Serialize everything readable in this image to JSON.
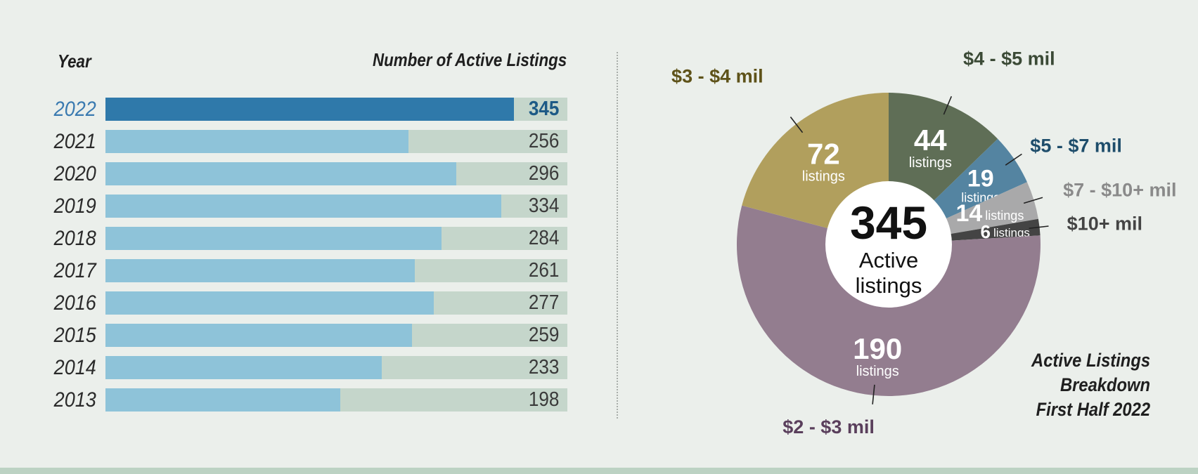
{
  "bar_panel": {
    "year_header": "Year",
    "count_header": "Number of Active Listings"
  },
  "pie_panel": {
    "center_value": "345",
    "center_line1": "Active",
    "center_line2": "listings",
    "unit_label": "listings",
    "caption": [
      "Active Listings",
      "Breakdown",
      "First Half 2022"
    ]
  },
  "chart_data": [
    {
      "type": "bar",
      "orientation": "horizontal",
      "title": "Number of Active Listings",
      "ylabel": "Year",
      "xlim": [
        0,
        390
      ],
      "grid": false,
      "highlight_category": "2022",
      "colors": {
        "bar": "#8ec3d9",
        "highlight": "#2f79aa",
        "track": "#c5d6cb"
      },
      "categories": [
        "2022",
        "2021",
        "2020",
        "2019",
        "2018",
        "2017",
        "2016",
        "2015",
        "2014",
        "2013"
      ],
      "values": [
        345,
        256,
        296,
        334,
        284,
        261,
        277,
        259,
        233,
        198
      ]
    },
    {
      "type": "pie",
      "style": "donut",
      "title": "Active Listings Breakdown First Half 2022",
      "total": 345,
      "slices": [
        {
          "label": "$4 - $5 mil",
          "value": 44,
          "color": "#5f6e56",
          "label_color": "#3b4a36"
        },
        {
          "label": "$5 - $7 mil",
          "value": 19,
          "color": "#5484a1",
          "label_color": "#1e4d6b"
        },
        {
          "label": "$7 - $10+ mil",
          "value": 14,
          "color": "#a9a9aa",
          "label_color": "#8a8a8a"
        },
        {
          "label": "$10+ mil",
          "value": 6,
          "color": "#444444",
          "label_color": "#444444"
        },
        {
          "label": "$2 - $3 mil",
          "value": 190,
          "color": "#937d8f",
          "label_color": "#5a3f5c"
        },
        {
          "label": "$3 - $4 mil",
          "value": 72,
          "color": "#b19f5d",
          "label_color": "#5e5219"
        }
      ]
    }
  ]
}
